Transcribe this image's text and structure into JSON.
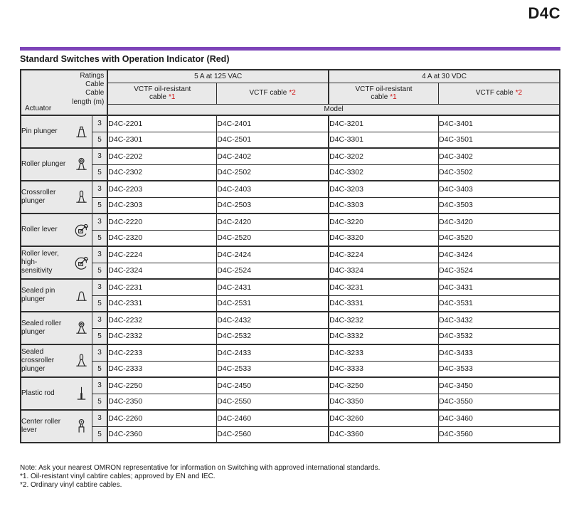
{
  "page": {
    "doc_code": "D4C",
    "section_title": "Standard Switches with Operation Indicator (Red)",
    "accent_color": "#7d44b8",
    "ref_color": "#cc1111"
  },
  "table": {
    "corner": {
      "col_ratings": "Ratings",
      "col_cable": "Cable",
      "col_length_line1": "Cable",
      "col_length_line2": "length (m)",
      "row_actuator": "Actuator"
    },
    "ratings": [
      "5 A at 125 VAC",
      "4 A at 30 VDC"
    ],
    "cable_types": [
      {
        "name": "VCTF oil-resistant cable",
        "ref": "*1"
      },
      {
        "name": "VCTF cable",
        "ref": "*2"
      }
    ],
    "model_header": "Model",
    "groups": [
      {
        "actuator": "Pin plunger",
        "icon": "pin-plunger",
        "rows": [
          {
            "length": "3",
            "models": [
              "D4C-2201",
              "D4C-2401",
              "D4C-3201",
              "D4C-3401"
            ]
          },
          {
            "length": "5",
            "models": [
              "D4C-2301",
              "D4C-2501",
              "D4C-3301",
              "D4C-3501"
            ]
          }
        ]
      },
      {
        "actuator": "Roller plunger",
        "icon": "roller-plunger",
        "rows": [
          {
            "length": "3",
            "models": [
              "D4C-2202",
              "D4C-2402",
              "D4C-3202",
              "D4C-3402"
            ]
          },
          {
            "length": "5",
            "models": [
              "D4C-2302",
              "D4C-2502",
              "D4C-3302",
              "D4C-3502"
            ]
          }
        ]
      },
      {
        "actuator": "Crossroller plunger",
        "icon": "crossroller-plunger",
        "rows": [
          {
            "length": "3",
            "models": [
              "D4C-2203",
              "D4C-2403",
              "D4C-3203",
              "D4C-3403"
            ]
          },
          {
            "length": "5",
            "models": [
              "D4C-2303",
              "D4C-2503",
              "D4C-3303",
              "D4C-3503"
            ]
          }
        ]
      },
      {
        "actuator": "Roller lever",
        "icon": "roller-lever",
        "rows": [
          {
            "length": "3",
            "models": [
              "D4C-2220",
              "D4C-2420",
              "D4C-3220",
              "D4C-3420"
            ]
          },
          {
            "length": "5",
            "models": [
              "D4C-2320",
              "D4C-2520",
              "D4C-3320",
              "D4C-3520"
            ]
          }
        ]
      },
      {
        "actuator": "Roller lever, high-sensitivity",
        "icon": "roller-lever",
        "rows": [
          {
            "length": "3",
            "models": [
              "D4C-2224",
              "D4C-2424",
              "D4C-3224",
              "D4C-3424"
            ]
          },
          {
            "length": "5",
            "models": [
              "D4C-2324",
              "D4C-2524",
              "D4C-3324",
              "D4C-3524"
            ]
          }
        ]
      },
      {
        "actuator": "Sealed pin plunger",
        "icon": "sealed-pin-plunger",
        "rows": [
          {
            "length": "3",
            "models": [
              "D4C-2231",
              "D4C-2431",
              "D4C-3231",
              "D4C-3431"
            ]
          },
          {
            "length": "5",
            "models": [
              "D4C-2331",
              "D4C-2531",
              "D4C-3331",
              "D4C-3531"
            ]
          }
        ]
      },
      {
        "actuator": "Sealed roller plunger",
        "icon": "sealed-roller-plunger",
        "rows": [
          {
            "length": "3",
            "models": [
              "D4C-2232",
              "D4C-2432",
              "D4C-3232",
              "D4C-3432"
            ]
          },
          {
            "length": "5",
            "models": [
              "D4C-2332",
              "D4C-2532",
              "D4C-3332",
              "D4C-3532"
            ]
          }
        ]
      },
      {
        "actuator": "Sealed crossroller plunger",
        "icon": "sealed-crossroller-plunger",
        "rows": [
          {
            "length": "3",
            "models": [
              "D4C-2233",
              "D4C-2433",
              "D4C-3233",
              "D4C-3433"
            ]
          },
          {
            "length": "5",
            "models": [
              "D4C-2333",
              "D4C-2533",
              "D4C-3333",
              "D4C-3533"
            ]
          }
        ]
      },
      {
        "actuator": "Plastic rod",
        "icon": "plastic-rod",
        "rows": [
          {
            "length": "3",
            "models": [
              "D4C-2250",
              "D4C-2450",
              "D4C-3250",
              "D4C-3450"
            ]
          },
          {
            "length": "5",
            "models": [
              "D4C-2350",
              "D4C-2550",
              "D4C-3350",
              "D4C-3550"
            ]
          }
        ]
      },
      {
        "actuator": "Center roller lever",
        "icon": "center-roller-lever",
        "rows": [
          {
            "length": "3",
            "models": [
              "D4C-2260",
              "D4C-2460",
              "D4C-3260",
              "D4C-3460"
            ]
          },
          {
            "length": "5",
            "models": [
              "D4C-2360",
              "D4C-2560",
              "D4C-3360",
              "D4C-3560"
            ]
          }
        ]
      }
    ]
  },
  "notes": [
    "Note: Ask your nearest OMRON representative for information on Switching with approved international standards.",
    "*1. Oil-resistant vinyl cabtire cables; approved by EN and IEC.",
    "*2. Ordinary vinyl cabtire cables."
  ]
}
